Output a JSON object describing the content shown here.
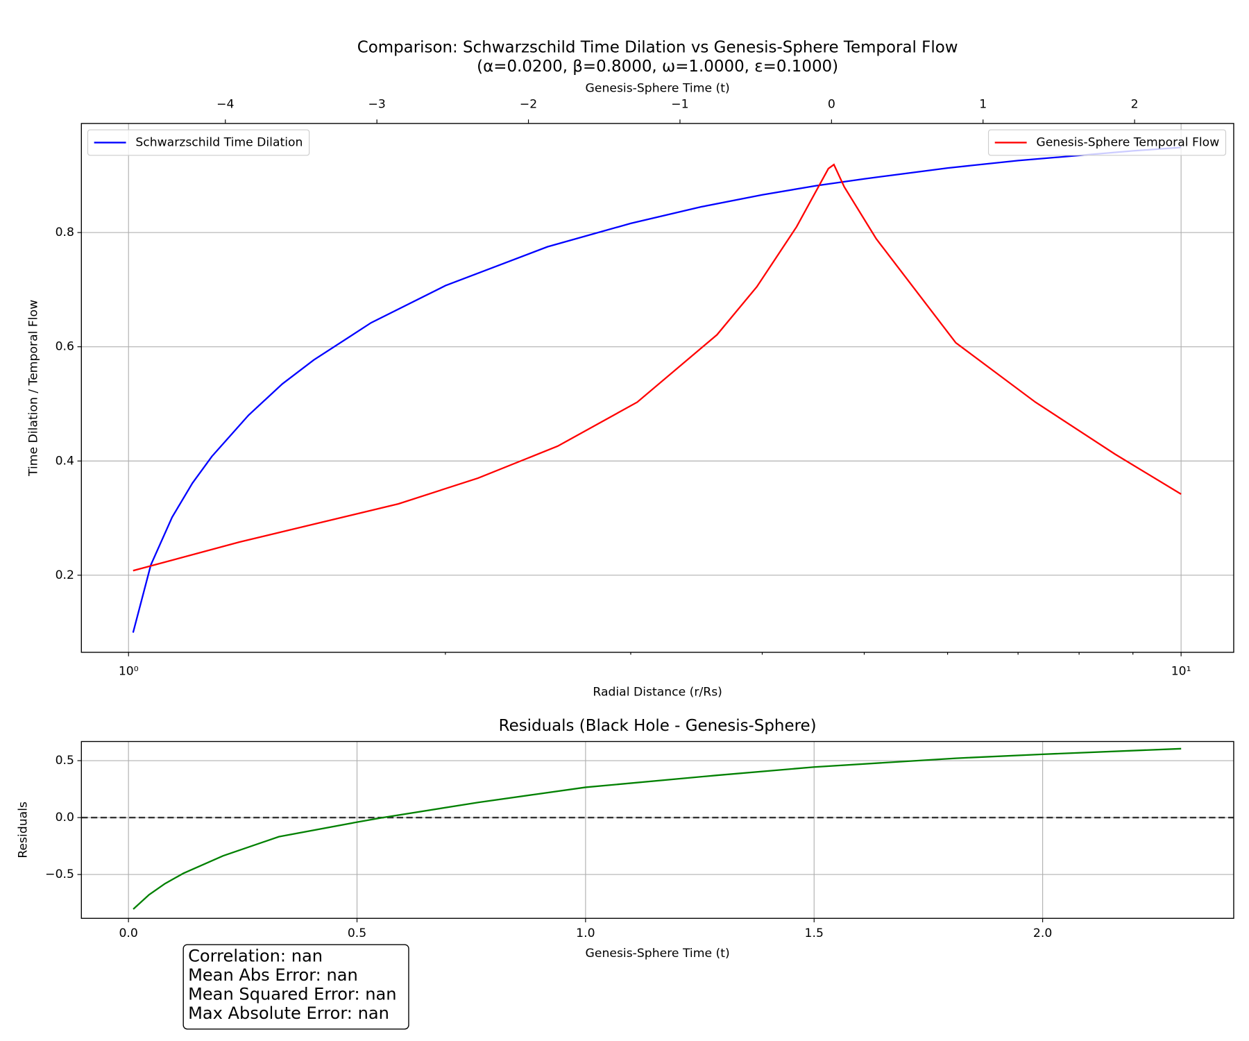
{
  "chart_data": [
    {
      "type": "line",
      "title": "Comparison: Schwarzschild Time Dilation vs Genesis-Sphere Temporal Flow",
      "subtitle": "(α=0.0200, β=0.8000, ω=1.0000, ε=0.1000)",
      "xlabel": "Radial Distance (r/Rs)",
      "ylabel": "Time Dilation / Temporal Flow",
      "x2label": "Genesis-Sphere Time (t)",
      "xscale": "log",
      "xlim": [
        0.902,
        11.22
      ],
      "xticks": [
        {
          "value": 1,
          "label": "10⁰"
        },
        {
          "value": 10,
          "label": "10¹"
        }
      ],
      "xminorticks": [
        2,
        3,
        4,
        5,
        6,
        7,
        8,
        9
      ],
      "x2lim": [
        -4.95,
        2.654
      ],
      "x2ticks": [
        {
          "value": -4,
          "label": "−4"
        },
        {
          "value": -3,
          "label": "−3"
        },
        {
          "value": -2,
          "label": "−2"
        },
        {
          "value": -1,
          "label": "−1"
        },
        0,
        1,
        2
      ],
      "ylim": [
        0.065,
        0.991
      ],
      "yticks": [
        0.2,
        0.4,
        0.6,
        0.8
      ],
      "grid": true,
      "series": [
        {
          "name": "Schwarzschild Time Dilation",
          "color": "#0000ff",
          "legend": "upper left",
          "x": [
            1.01,
            1.05,
            1.1,
            1.15,
            1.2,
            1.3,
            1.4,
            1.5,
            1.7,
            2,
            2.5,
            3,
            3.5,
            4,
            4.5,
            5,
            6,
            7,
            8,
            9,
            10
          ],
          "values": [
            0.0995,
            0.218,
            0.3015,
            0.3612,
            0.408,
            0.48,
            0.535,
            0.577,
            0.642,
            0.707,
            0.775,
            0.816,
            0.845,
            0.866,
            0.882,
            0.894,
            0.913,
            0.926,
            0.935,
            0.943,
            0.949
          ]
        },
        {
          "name": "Genesis-Sphere Temporal Flow",
          "color": "#ff0000",
          "legend": "upper right",
          "x": [
            1.01,
            1.274,
            1.805,
            2.148,
            2.557,
            3.043,
            3.623,
            3.953,
            4.312,
            4.623,
            4.679,
            4.786,
            5.133,
            6.109,
            7.271,
            8.654,
            10
          ],
          "values": [
            0.208,
            0.258,
            0.325,
            0.37,
            0.426,
            0.503,
            0.621,
            0.705,
            0.81,
            0.912,
            0.919,
            0.88,
            0.789,
            0.607,
            0.503,
            0.412,
            0.342
          ]
        }
      ]
    },
    {
      "type": "line",
      "title": "Residuals (Black Hole - Genesis-Sphere)",
      "xlabel": "Genesis-Sphere Time (t)",
      "ylabel": "Residuals",
      "xlim": [
        -0.103,
        2.418
      ],
      "xticks": [
        {
          "value": 0,
          "label": "0.0"
        },
        0.5,
        {
          "value": 1,
          "label": "1.0"
        },
        1.5,
        {
          "value": 2,
          "label": "2.0"
        }
      ],
      "ylim": [
        -0.885,
        0.668
      ],
      "yticks": [
        {
          "value": -0.5,
          "label": "−0.5"
        },
        {
          "value": 0,
          "label": "0.0"
        },
        0.5
      ],
      "grid": true,
      "hline": 0,
      "series": [
        {
          "color": "#008000",
          "x": [
            0.0105,
            0.045,
            0.08,
            0.12,
            0.207,
            0.329,
            0.5,
            0.556,
            0.765,
            1.0,
            1.287,
            1.5,
            1.81,
            2.0,
            2.303
          ],
          "values": [
            -0.804,
            -0.678,
            -0.58,
            -0.49,
            -0.336,
            -0.168,
            -0.04,
            0,
            0.133,
            0.266,
            0.371,
            0.444,
            0.521,
            0.556,
            0.605
          ]
        }
      ],
      "stats": [
        "Correlation: nan",
        "Mean Abs Error: nan",
        "Mean Squared Error: nan",
        "Max Absolute Error: nan"
      ]
    }
  ]
}
